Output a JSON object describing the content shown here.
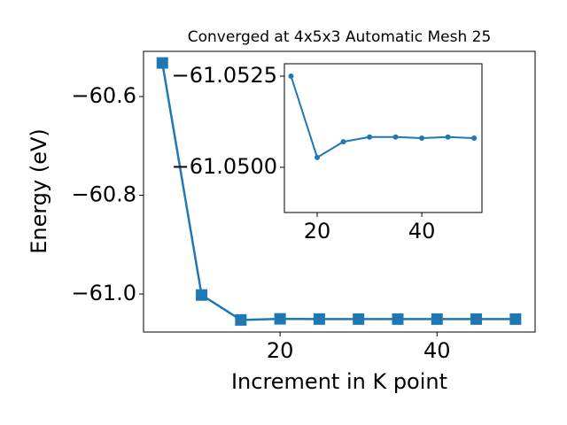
{
  "chart_data": [
    {
      "type": "line",
      "title": "Converged at 4x5x3 Automatic Mesh 25",
      "xlabel": "Increment in K point",
      "ylabel": "Energy (eV)",
      "x": [
        5,
        10,
        15,
        20,
        25,
        30,
        35,
        40,
        45,
        50
      ],
      "series": [
        {
          "color": "#1f77b4",
          "marker": "square",
          "values": [
            -60.532,
            -61.002,
            -61.0525,
            -61.0503,
            -61.0507,
            -61.0508,
            -61.0508,
            -61.0508,
            -61.0508,
            -61.0508
          ]
        }
      ],
      "xlim": [
        2.6,
        52.5
      ],
      "ylim": [
        -61.077,
        -60.5085
      ],
      "xticks": [
        20,
        40
      ],
      "yticks": [
        {
          "value": -61.0,
          "label": "−61.0"
        },
        {
          "value": -60.8,
          "label": "−60.8"
        },
        {
          "value": -60.6,
          "label": "−60.6"
        }
      ]
    },
    {
      "type": "line",
      "x": [
        15,
        20,
        25,
        30,
        35,
        40,
        45,
        50
      ],
      "series": [
        {
          "color": "#1f77b4",
          "marker": "circle",
          "values": [
            -61.0525,
            -61.05027,
            -61.0507,
            -61.05083,
            -61.05083,
            -61.0508,
            -61.05083,
            -61.0508
          ]
        }
      ],
      "xlim": [
        13.73,
        51.5
      ],
      "ylim": [
        -61.04876,
        -61.05284
      ],
      "xticks": [
        20,
        40
      ],
      "yticks": [
        {
          "value": -61.05,
          "label": "−61.0500"
        },
        {
          "value": -61.0525,
          "label": "−61.0525"
        }
      ]
    }
  ]
}
